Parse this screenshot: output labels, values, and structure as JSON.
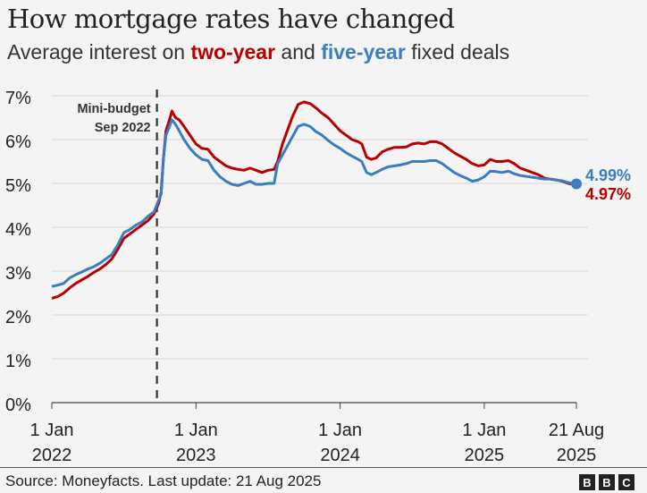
{
  "header": {
    "title": "How mortgage rates have changed",
    "subtitle_prefix": "Average interest on ",
    "subtitle_two": "two-year",
    "subtitle_mid": " and ",
    "subtitle_five": "five-year",
    "subtitle_suffix": " fixed deals"
  },
  "footer": {
    "source": "Source: Moneyfacts. Last update: 21 Aug 2025",
    "logo": [
      "B",
      "B",
      "C"
    ]
  },
  "chart_data": {
    "type": "line",
    "title": "How mortgage rates have changed",
    "subtitle": "Average interest on two-year and five-year fixed deals",
    "xlabel": "",
    "ylabel": "",
    "x_unit": "months since 1 Jan 2022",
    "xlim": [
      0,
      43.67
    ],
    "ylim": [
      0,
      7
    ],
    "grid": true,
    "yticks": [
      0,
      1,
      2,
      3,
      4,
      5,
      6,
      7
    ],
    "ytick_labels": [
      "0%",
      "1%",
      "2%",
      "3%",
      "4%",
      "5%",
      "6%",
      "7%"
    ],
    "xticks": [
      0,
      12,
      24,
      36,
      43.67
    ],
    "xtick_labels": [
      [
        "1 Jan",
        "2022"
      ],
      [
        "1 Jan",
        "2023"
      ],
      [
        "1 Jan",
        "2024"
      ],
      [
        "1 Jan",
        "2025"
      ],
      [
        "21 Aug",
        "2025"
      ]
    ],
    "annotation": {
      "label": [
        "Mini-budget",
        "Sep 2022"
      ],
      "x": 8.75
    },
    "series": [
      {
        "name": "two-year",
        "color": "#b80000",
        "end_label": "4.97%",
        "points": [
          [
            0,
            2.38
          ],
          [
            0.5,
            2.42
          ],
          [
            1,
            2.5
          ],
          [
            1.5,
            2.62
          ],
          [
            2,
            2.72
          ],
          [
            2.5,
            2.8
          ],
          [
            3,
            2.88
          ],
          [
            3.5,
            2.97
          ],
          [
            4,
            3.05
          ],
          [
            4.5,
            3.15
          ],
          [
            5,
            3.28
          ],
          [
            5.5,
            3.5
          ],
          [
            6,
            3.75
          ],
          [
            6.5,
            3.85
          ],
          [
            7,
            3.95
          ],
          [
            7.5,
            4.05
          ],
          [
            8,
            4.15
          ],
          [
            8.5,
            4.3
          ],
          [
            8.9,
            4.55
          ],
          [
            9.1,
            4.8
          ],
          [
            9.3,
            5.6
          ],
          [
            9.5,
            6.2
          ],
          [
            9.8,
            6.45
          ],
          [
            10,
            6.65
          ],
          [
            10.3,
            6.5
          ],
          [
            10.6,
            6.45
          ],
          [
            11,
            6.3
          ],
          [
            11.5,
            6.1
          ],
          [
            12,
            5.9
          ],
          [
            12.5,
            5.8
          ],
          [
            13,
            5.78
          ],
          [
            13.5,
            5.6
          ],
          [
            14,
            5.5
          ],
          [
            14.5,
            5.4
          ],
          [
            15,
            5.35
          ],
          [
            15.5,
            5.32
          ],
          [
            16,
            5.3
          ],
          [
            16.5,
            5.35
          ],
          [
            17,
            5.3
          ],
          [
            17.5,
            5.25
          ],
          [
            18,
            5.3
          ],
          [
            18.5,
            5.32
          ],
          [
            18.8,
            5.5
          ],
          [
            19.2,
            5.9
          ],
          [
            19.6,
            6.2
          ],
          [
            20,
            6.5
          ],
          [
            20.5,
            6.8
          ],
          [
            21,
            6.86
          ],
          [
            21.5,
            6.82
          ],
          [
            22,
            6.72
          ],
          [
            22.5,
            6.6
          ],
          [
            23,
            6.5
          ],
          [
            23.5,
            6.35
          ],
          [
            24,
            6.2
          ],
          [
            24.5,
            6.1
          ],
          [
            25,
            6.0
          ],
          [
            25.5,
            5.95
          ],
          [
            25.8,
            5.9
          ],
          [
            26.2,
            5.6
          ],
          [
            26.6,
            5.55
          ],
          [
            27,
            5.58
          ],
          [
            27.5,
            5.72
          ],
          [
            28,
            5.78
          ],
          [
            28.5,
            5.82
          ],
          [
            29,
            5.82
          ],
          [
            29.5,
            5.83
          ],
          [
            30,
            5.9
          ],
          [
            30.5,
            5.92
          ],
          [
            31,
            5.9
          ],
          [
            31.5,
            5.95
          ],
          [
            32,
            5.95
          ],
          [
            32.5,
            5.9
          ],
          [
            33,
            5.8
          ],
          [
            33.5,
            5.7
          ],
          [
            34,
            5.62
          ],
          [
            34.5,
            5.55
          ],
          [
            35,
            5.45
          ],
          [
            35.5,
            5.4
          ],
          [
            36,
            5.42
          ],
          [
            36.5,
            5.55
          ],
          [
            37,
            5.5
          ],
          [
            37.5,
            5.5
          ],
          [
            38,
            5.52
          ],
          [
            38.5,
            5.45
          ],
          [
            39,
            5.35
          ],
          [
            39.5,
            5.3
          ],
          [
            40,
            5.25
          ],
          [
            40.5,
            5.2
          ],
          [
            41,
            5.12
          ],
          [
            41.5,
            5.1
          ],
          [
            42,
            5.08
          ],
          [
            42.5,
            5.05
          ],
          [
            43,
            5.0
          ],
          [
            43.67,
            4.97
          ]
        ]
      },
      {
        "name": "five-year",
        "color": "#3a7dc0",
        "end_label": "4.99%",
        "points": [
          [
            0,
            2.65
          ],
          [
            0.5,
            2.68
          ],
          [
            1,
            2.72
          ],
          [
            1.5,
            2.85
          ],
          [
            2,
            2.92
          ],
          [
            2.5,
            2.98
          ],
          [
            3,
            3.05
          ],
          [
            3.5,
            3.1
          ],
          [
            4,
            3.18
          ],
          [
            4.5,
            3.28
          ],
          [
            5,
            3.38
          ],
          [
            5.5,
            3.6
          ],
          [
            6,
            3.88
          ],
          [
            6.5,
            3.95
          ],
          [
            7,
            4.05
          ],
          [
            7.5,
            4.12
          ],
          [
            8,
            4.25
          ],
          [
            8.5,
            4.35
          ],
          [
            8.9,
            4.62
          ],
          [
            9.1,
            4.75
          ],
          [
            9.3,
            5.6
          ],
          [
            9.5,
            6.1
          ],
          [
            9.8,
            6.3
          ],
          [
            10,
            6.45
          ],
          [
            10.3,
            6.35
          ],
          [
            10.6,
            6.2
          ],
          [
            11,
            6.0
          ],
          [
            11.5,
            5.8
          ],
          [
            12,
            5.65
          ],
          [
            12.5,
            5.55
          ],
          [
            13,
            5.52
          ],
          [
            13.5,
            5.3
          ],
          [
            14,
            5.15
          ],
          [
            14.5,
            5.05
          ],
          [
            15,
            4.98
          ],
          [
            15.5,
            4.95
          ],
          [
            16,
            5.0
          ],
          [
            16.5,
            5.05
          ],
          [
            17,
            4.98
          ],
          [
            17.5,
            4.98
          ],
          [
            18,
            5.0
          ],
          [
            18.5,
            5.0
          ],
          [
            18.8,
            5.45
          ],
          [
            19.2,
            5.65
          ],
          [
            19.6,
            5.85
          ],
          [
            20,
            6.05
          ],
          [
            20.5,
            6.3
          ],
          [
            21,
            6.35
          ],
          [
            21.5,
            6.3
          ],
          [
            22,
            6.18
          ],
          [
            22.5,
            6.1
          ],
          [
            23,
            5.98
          ],
          [
            23.5,
            5.88
          ],
          [
            24,
            5.8
          ],
          [
            24.5,
            5.7
          ],
          [
            25,
            5.62
          ],
          [
            25.5,
            5.55
          ],
          [
            25.8,
            5.5
          ],
          [
            26.2,
            5.25
          ],
          [
            26.6,
            5.2
          ],
          [
            27,
            5.25
          ],
          [
            27.5,
            5.32
          ],
          [
            28,
            5.38
          ],
          [
            28.5,
            5.4
          ],
          [
            29,
            5.42
          ],
          [
            29.5,
            5.45
          ],
          [
            30,
            5.5
          ],
          [
            30.5,
            5.5
          ],
          [
            31,
            5.5
          ],
          [
            31.5,
            5.52
          ],
          [
            32,
            5.52
          ],
          [
            32.5,
            5.45
          ],
          [
            33,
            5.35
          ],
          [
            33.5,
            5.25
          ],
          [
            34,
            5.18
          ],
          [
            34.5,
            5.12
          ],
          [
            35,
            5.05
          ],
          [
            35.5,
            5.08
          ],
          [
            36,
            5.15
          ],
          [
            36.5,
            5.28
          ],
          [
            37,
            5.27
          ],
          [
            37.5,
            5.25
          ],
          [
            38,
            5.28
          ],
          [
            38.5,
            5.22
          ],
          [
            39,
            5.18
          ],
          [
            39.5,
            5.16
          ],
          [
            40,
            5.14
          ],
          [
            40.5,
            5.12
          ],
          [
            41,
            5.1
          ],
          [
            41.5,
            5.1
          ],
          [
            42,
            5.08
          ],
          [
            42.5,
            5.06
          ],
          [
            43,
            5.02
          ],
          [
            43.67,
            4.99
          ]
        ]
      }
    ]
  }
}
